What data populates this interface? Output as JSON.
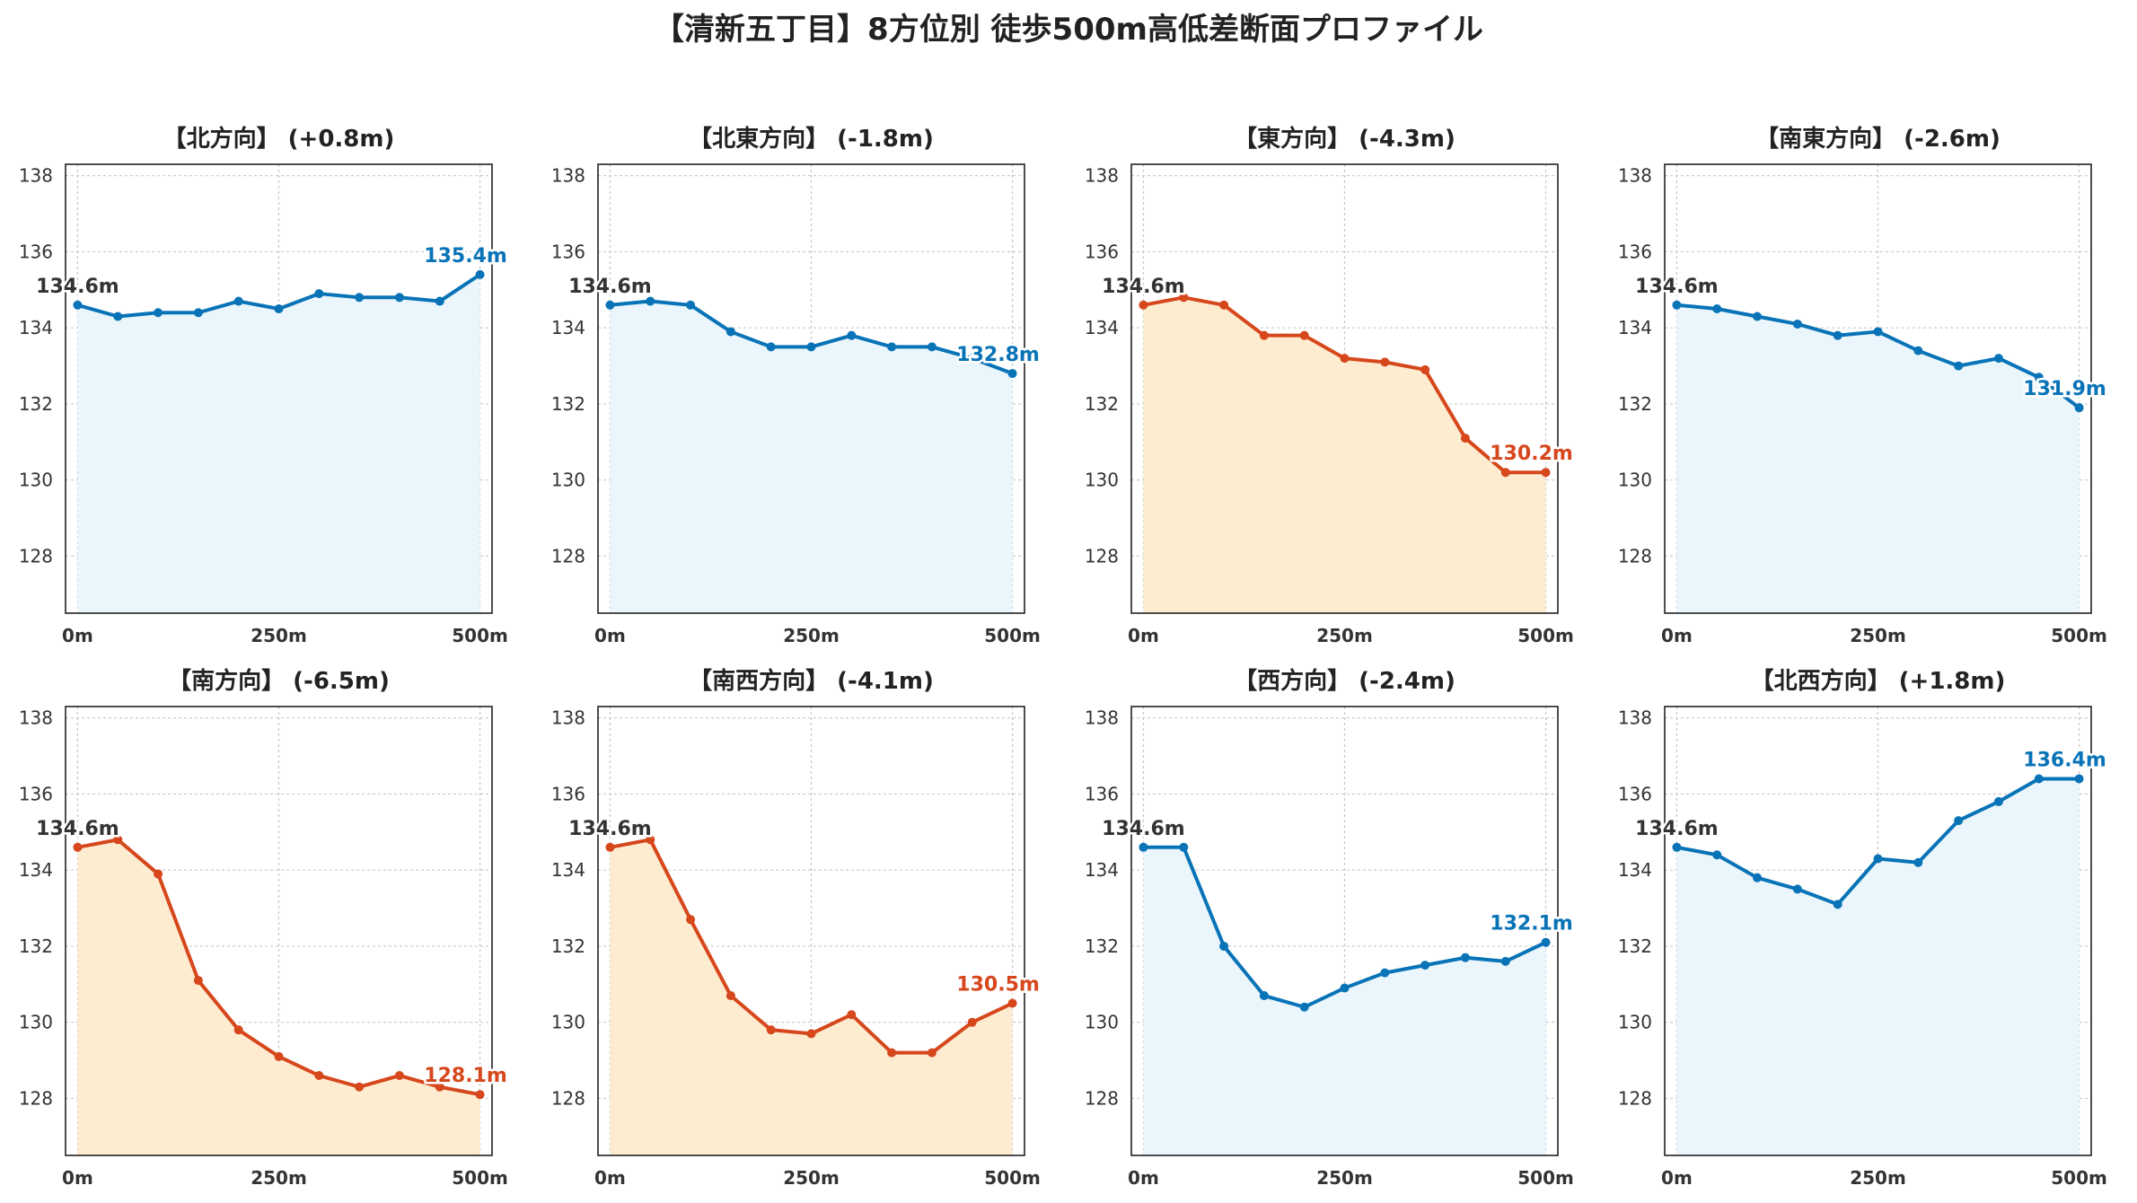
{
  "title": "【清新五丁目】8方位別 徒歩500m高低差断面プロファイル",
  "colors": {
    "up": "#0873b7",
    "down": "#d6471c",
    "up_fill": "#eaf6fb",
    "down_fill": "#feecd0",
    "start_label": "#333333"
  },
  "chart_data": [
    {
      "type": "area",
      "title": "【北方向】 (+0.8m)",
      "trend": "up",
      "x": [
        0,
        50,
        100,
        150,
        200,
        250,
        300,
        350,
        400,
        450,
        500
      ],
      "y": [
        134.6,
        134.3,
        134.4,
        134.4,
        134.7,
        134.5,
        134.9,
        134.8,
        134.8,
        134.7,
        135.4
      ],
      "start_label": "134.6m",
      "end_label": "135.4m",
      "ylim": [
        126.5,
        138.3
      ],
      "yticks": [
        "128",
        "130",
        "132",
        "134",
        "136",
        "138"
      ],
      "xticks": [
        "0m",
        "250m",
        "500m"
      ],
      "grid": true
    },
    {
      "type": "area",
      "title": "【北東方向】 (-1.8m)",
      "trend": "up",
      "x": [
        0,
        50,
        100,
        150,
        200,
        250,
        300,
        350,
        400,
        450,
        500
      ],
      "y": [
        134.6,
        134.7,
        134.6,
        133.9,
        133.5,
        133.5,
        133.8,
        133.5,
        133.5,
        133.2,
        132.8
      ],
      "start_label": "134.6m",
      "end_label": "132.8m",
      "ylim": [
        126.5,
        138.3
      ],
      "yticks": [
        "128",
        "130",
        "132",
        "134",
        "136",
        "138"
      ],
      "xticks": [
        "0m",
        "250m",
        "500m"
      ],
      "grid": true
    },
    {
      "type": "area",
      "title": "【東方向】 (-4.3m)",
      "trend": "down",
      "x": [
        0,
        50,
        100,
        150,
        200,
        250,
        300,
        350,
        400,
        450,
        500
      ],
      "y": [
        134.6,
        134.8,
        134.6,
        133.8,
        133.8,
        133.2,
        133.1,
        132.9,
        131.1,
        130.2,
        130.2
      ],
      "start_label": "134.6m",
      "end_label": "130.2m",
      "ylim": [
        126.5,
        138.3
      ],
      "yticks": [
        "128",
        "130",
        "132",
        "134",
        "136",
        "138"
      ],
      "xticks": [
        "0m",
        "250m",
        "500m"
      ],
      "grid": true
    },
    {
      "type": "area",
      "title": "【南東方向】 (-2.6m)",
      "trend": "up",
      "x": [
        0,
        50,
        100,
        150,
        200,
        250,
        300,
        350,
        400,
        450,
        500
      ],
      "y": [
        134.6,
        134.5,
        134.3,
        134.1,
        133.8,
        133.9,
        133.4,
        133.0,
        133.2,
        132.7,
        131.9
      ],
      "start_label": "134.6m",
      "end_label": "131.9m",
      "ylim": [
        126.5,
        138.3
      ],
      "yticks": [
        "128",
        "130",
        "132",
        "134",
        "136",
        "138"
      ],
      "xticks": [
        "0m",
        "250m",
        "500m"
      ],
      "grid": true
    },
    {
      "type": "area",
      "title": "【南方向】 (-6.5m)",
      "trend": "down",
      "x": [
        0,
        50,
        100,
        150,
        200,
        250,
        300,
        350,
        400,
        450,
        500
      ],
      "y": [
        134.6,
        134.8,
        133.9,
        131.1,
        129.8,
        129.1,
        128.6,
        128.3,
        128.6,
        128.3,
        128.1
      ],
      "start_label": "134.6m",
      "end_label": "128.1m",
      "ylim": [
        126.5,
        138.3
      ],
      "yticks": [
        "128",
        "130",
        "132",
        "134",
        "136",
        "138"
      ],
      "xticks": [
        "0m",
        "250m",
        "500m"
      ],
      "grid": true
    },
    {
      "type": "area",
      "title": "【南西方向】 (-4.1m)",
      "trend": "down",
      "x": [
        0,
        50,
        100,
        150,
        200,
        250,
        300,
        350,
        400,
        450,
        500
      ],
      "y": [
        134.6,
        134.8,
        132.7,
        130.7,
        129.8,
        129.7,
        130.2,
        129.2,
        129.2,
        130.0,
        130.5
      ],
      "start_label": "134.6m",
      "end_label": "130.5m",
      "ylim": [
        126.5,
        138.3
      ],
      "yticks": [
        "128",
        "130",
        "132",
        "134",
        "136",
        "138"
      ],
      "xticks": [
        "0m",
        "250m",
        "500m"
      ],
      "grid": true
    },
    {
      "type": "area",
      "title": "【西方向】 (-2.4m)",
      "trend": "up",
      "x": [
        0,
        50,
        100,
        150,
        200,
        250,
        300,
        350,
        400,
        450,
        500
      ],
      "y": [
        134.6,
        134.6,
        132.0,
        130.7,
        130.4,
        130.9,
        131.3,
        131.5,
        131.7,
        131.6,
        132.1
      ],
      "start_label": "134.6m",
      "end_label": "132.1m",
      "ylim": [
        126.5,
        138.3
      ],
      "yticks": [
        "128",
        "130",
        "132",
        "134",
        "136",
        "138"
      ],
      "xticks": [
        "0m",
        "250m",
        "500m"
      ],
      "grid": true
    },
    {
      "type": "area",
      "title": "【北西方向】 (+1.8m)",
      "trend": "up",
      "x": [
        0,
        50,
        100,
        150,
        200,
        250,
        300,
        350,
        400,
        450,
        500
      ],
      "y": [
        134.6,
        134.4,
        133.8,
        133.5,
        133.1,
        134.3,
        134.2,
        135.3,
        135.8,
        136.4,
        136.4
      ],
      "start_label": "134.6m",
      "end_label": "136.4m",
      "ylim": [
        126.5,
        138.3
      ],
      "yticks": [
        "128",
        "130",
        "132",
        "134",
        "136",
        "138"
      ],
      "xticks": [
        "0m",
        "250m",
        "500m"
      ],
      "grid": true
    }
  ]
}
